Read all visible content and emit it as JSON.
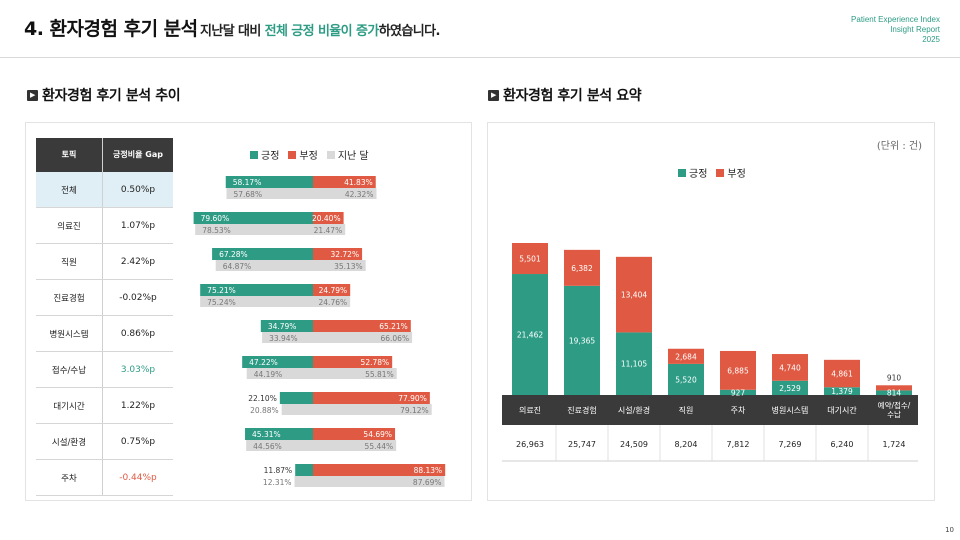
{
  "header": {
    "title": "4. 환자경험 후기 분석",
    "subtitle_pre": "지난달 대비 ",
    "subtitle_hl": "전체 긍정 비율이 증가",
    "subtitle_post": "하였습니다.",
    "brand_line1": "Patient Experience Index",
    "brand_line2": "Insight Report",
    "brand_line3": "2025"
  },
  "left_section": {
    "title": "환자경험 후기 분석 추이"
  },
  "right_section": {
    "title": "환자경험 후기 분석 요약"
  },
  "table": {
    "header_topic": "토픽",
    "header_gap": "긍정비율 Gap",
    "rows": [
      {
        "topic": "전체",
        "gap": "0.50%p",
        "sign": "pos"
      },
      {
        "topic": "의료진",
        "gap": "1.07%p",
        "sign": "pos"
      },
      {
        "topic": "직원",
        "gap": "2.42%p",
        "sign": "pos"
      },
      {
        "topic": "진료경험",
        "gap": "-0.02%p",
        "sign": "neg"
      },
      {
        "topic": "병원시스템",
        "gap": "0.86%p",
        "sign": "pos"
      },
      {
        "topic": "접수/수납",
        "gap": "3.03%p",
        "sign": "pos-hl"
      },
      {
        "topic": "대기시간",
        "gap": "1.22%p",
        "sign": "pos"
      },
      {
        "topic": "시설/환경",
        "gap": "0.75%p",
        "sign": "pos"
      },
      {
        "topic": "주차",
        "gap": "-0.44%p",
        "sign": "neg-hl"
      }
    ]
  },
  "legend_left": {
    "pos": "긍정",
    "neg": "부정",
    "prev": "지난 달"
  },
  "legend_right": {
    "pos": "긍정",
    "neg": "부정"
  },
  "unit_label": "(단위 : 건)",
  "colors": {
    "pos": "#2e9c85",
    "neg": "#e05a43",
    "prev": "#d9d9d9",
    "accent": "#2e9c85"
  },
  "chart_data": [
    {
      "type": "bar",
      "orientation": "horizontal-diverging",
      "categories": [
        "전체",
        "의료진",
        "직원",
        "진료경험",
        "병원시스템",
        "접수/수납",
        "대기시간",
        "시설/환경",
        "주차"
      ],
      "series": [
        {
          "name": "긍정",
          "values": [
            58.17,
            79.6,
            67.28,
            75.21,
            34.79,
            47.22,
            22.1,
            45.31,
            11.87
          ],
          "labels": [
            "58.17%",
            "79.60%",
            "67.28%",
            "75.21%",
            "34.79%",
            "47.22%",
            "22.10%",
            "45.31%",
            "11.87%"
          ]
        },
        {
          "name": "부정",
          "values": [
            41.83,
            20.4,
            32.72,
            24.79,
            65.21,
            52.78,
            77.9,
            54.69,
            88.13
          ],
          "labels": [
            "41.83%",
            "20.40%",
            "32.72%",
            "24.79%",
            "65.21%",
            "52.78%",
            "77.90%",
            "54.69%",
            "88.13%"
          ]
        },
        {
          "name": "지난 달 긍정",
          "values": [
            57.68,
            78.53,
            64.87,
            75.24,
            33.94,
            44.19,
            20.88,
            44.56,
            12.31
          ],
          "labels": [
            "57.68%",
            "78.53%",
            "64.87%",
            "75.24%",
            "33.94%",
            "44.19%",
            "20.88%",
            "44.56%",
            "12.31%"
          ]
        },
        {
          "name": "지난 달 부정",
          "values": [
            42.32,
            21.47,
            35.13,
            24.76,
            66.06,
            55.81,
            79.12,
            55.44,
            87.69
          ],
          "labels": [
            "42.32%",
            "21.47%",
            "35.13%",
            "24.76%",
            "66.06%",
            "55.81%",
            "79.12%",
            "55.44%",
            "87.69%"
          ]
        }
      ]
    },
    {
      "type": "bar",
      "stacked": true,
      "categories": [
        "의료진",
        "진료경험",
        "시설/환경",
        "직원",
        "주차",
        "병원시스템",
        "대기시간",
        "예약/접수/수납"
      ],
      "series": [
        {
          "name": "긍정",
          "values": [
            21462,
            19365,
            11105,
            5520,
            927,
            2529,
            1379,
            814
          ]
        },
        {
          "name": "부정",
          "values": [
            5501,
            6382,
            13404,
            2684,
            6885,
            4740,
            4861,
            910
          ]
        }
      ],
      "totals": [
        26963,
        25747,
        24509,
        8204,
        7812,
        7269,
        6240,
        1724
      ],
      "total_labels": [
        "26,963",
        "25,747",
        "24,509",
        "8,204",
        "7,812",
        "7,269",
        "6,240",
        "1,724"
      ],
      "pos_labels": [
        "21,462",
        "19,365",
        "11,105",
        "5,520",
        "927",
        "2,529",
        "1,379",
        "814"
      ],
      "neg_labels": [
        "5,501",
        "6,382",
        "13,404",
        "2,684",
        "6,885",
        "4,740",
        "4,861",
        "910"
      ]
    }
  ],
  "page_number": "10"
}
